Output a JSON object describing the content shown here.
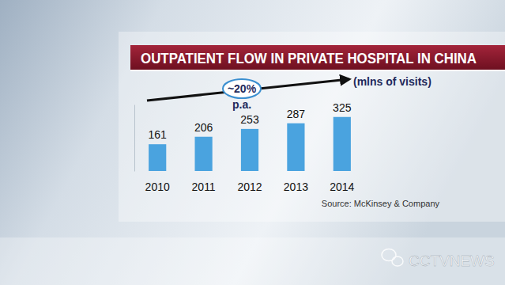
{
  "chart_data": {
    "type": "bar",
    "title": "OUTPATIENT FLOW IN PRIVATE HOSPITAL IN CHINA",
    "subtitle": "(mlns of visits)",
    "annotations": [
      "~20%",
      "p.a."
    ],
    "source": "Source: McKinsey & Company",
    "watermark": "CCTVNEWS",
    "categories": [
      "2010",
      "2011",
      "2012",
      "2013",
      "2014"
    ],
    "values": [
      161,
      206,
      253,
      287,
      325
    ],
    "color": "#4aa3df",
    "ylim": [
      0,
      400
    ],
    "data_labels": true,
    "tick_labels": "x",
    "grid": false
  }
}
